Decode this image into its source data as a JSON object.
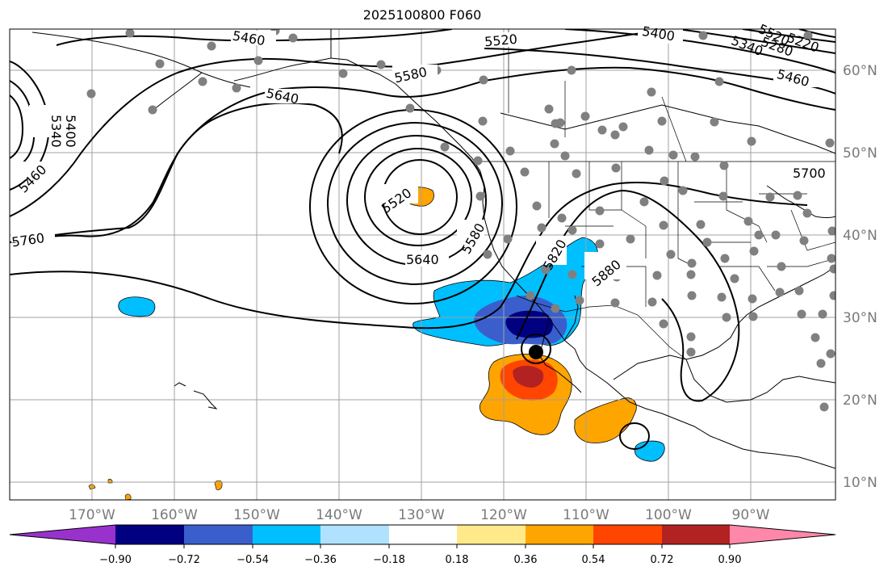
{
  "title": "2025100800 F060",
  "lat_labels": [
    "60°N",
    "50°N",
    "40°N",
    "30°N",
    "20°N",
    "10°N"
  ],
  "lon_labels": [
    "170°W",
    "160°W",
    "150°W",
    "140°W",
    "130°W",
    "120°W",
    "110°W",
    "100°W",
    "90°W"
  ],
  "contour_labels": [
    "5460",
    "5520",
    "5580",
    "5640",
    "5400",
    "5340",
    "5460",
    "5400",
    "5520",
    "5280",
    "5220",
    "5340",
    "5460",
    "5700",
    "5760",
    "5520",
    "5580",
    "5640",
    "5820",
    "5880"
  ],
  "colorbar": {
    "ticks": [
      "−0.90",
      "−0.72",
      "−0.54",
      "−0.36",
      "−0.18",
      "0.18",
      "0.36",
      "0.54",
      "0.72",
      "0.90"
    ],
    "colors": [
      "#9932cc",
      "#000080",
      "#3a5fcd",
      "#00bfff",
      "#b0e2ff",
      "#ffffff",
      "#ffe98a",
      "#ffa500",
      "#ff4500",
      "#b22222",
      "#ff88aa"
    ]
  },
  "colors": {
    "grid": "#a0a0a0",
    "contour": "#000000",
    "station_dots": "#808080",
    "axis_labels": "#7a7a7a"
  }
}
